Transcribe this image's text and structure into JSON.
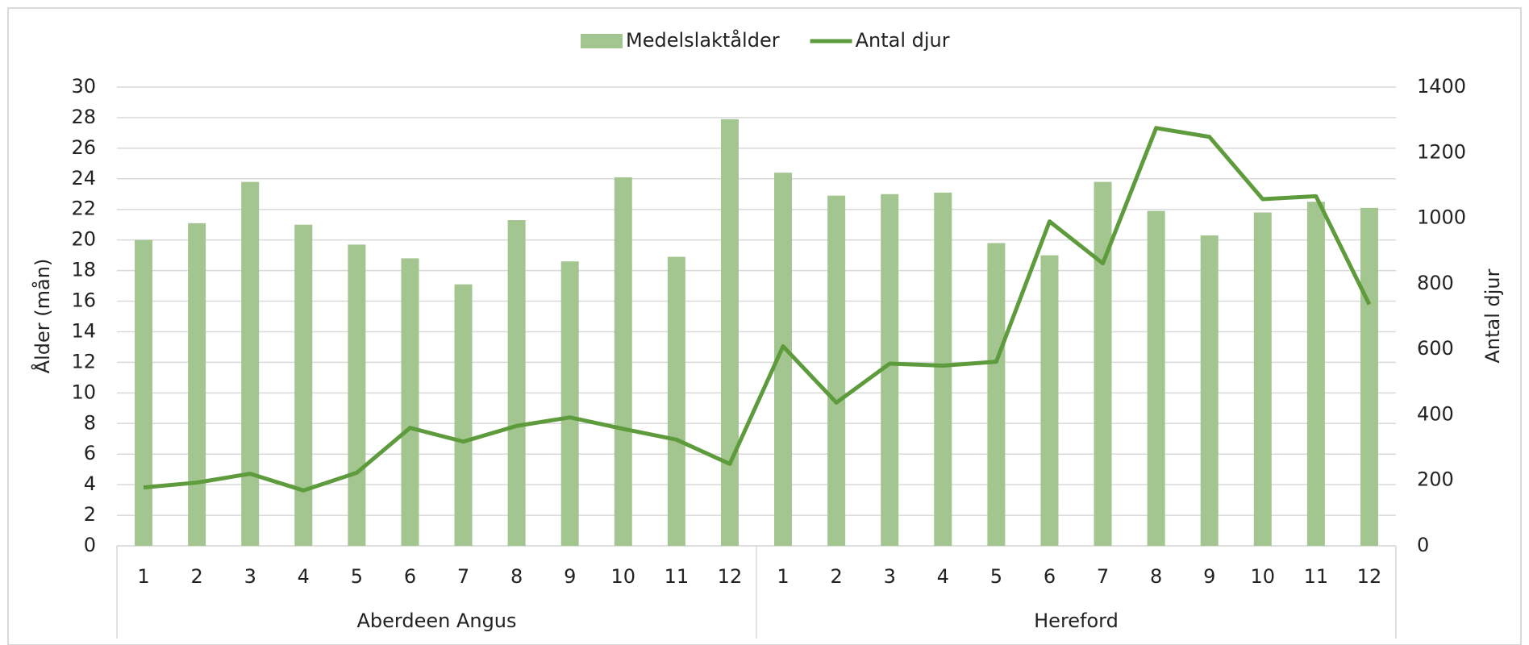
{
  "chart_data": {
    "type": "bar_line",
    "y_label": "Ålder (mån)",
    "y2_label": "Antal djur",
    "groups": [
      {
        "name": "Aberdeen Angus",
        "categories": [
          "1",
          "2",
          "3",
          "4",
          "5",
          "6",
          "7",
          "8",
          "9",
          "10",
          "11",
          "12"
        ]
      },
      {
        "name": "Hereford",
        "categories": [
          "1",
          "2",
          "3",
          "4",
          "5",
          "6",
          "7",
          "8",
          "9",
          "10",
          "11",
          "12"
        ]
      }
    ],
    "series": [
      {
        "name": "Medelslaktålder",
        "type": "bar",
        "color": "#a3c590",
        "values": [
          20.0,
          21.1,
          23.8,
          21.0,
          19.7,
          18.8,
          17.1,
          21.3,
          18.6,
          24.1,
          18.9,
          27.9,
          24.4,
          22.9,
          23.0,
          23.1,
          19.8,
          19.0,
          23.8,
          21.9,
          20.3,
          21.8,
          22.5,
          22.1
        ]
      },
      {
        "name": "Antal djur",
        "type": "line",
        "axis": "y2",
        "color": "#5e9b3c",
        "values": [
          178,
          193,
          220,
          169,
          223,
          360,
          318,
          366,
          392,
          357,
          324,
          250,
          609,
          437,
          556,
          550,
          562,
          990,
          862,
          1275,
          1248,
          1058,
          1067,
          737
        ]
      }
    ],
    "ylim": [
      0,
      30
    ],
    "yticks": [
      0,
      2,
      4,
      6,
      8,
      10,
      12,
      14,
      16,
      18,
      20,
      22,
      24,
      26,
      28,
      30
    ],
    "y2lim": [
      0,
      1400
    ],
    "y2ticks": [
      0,
      200,
      400,
      600,
      800,
      1000,
      1200,
      1400
    ],
    "grid": true,
    "legend": "top"
  }
}
